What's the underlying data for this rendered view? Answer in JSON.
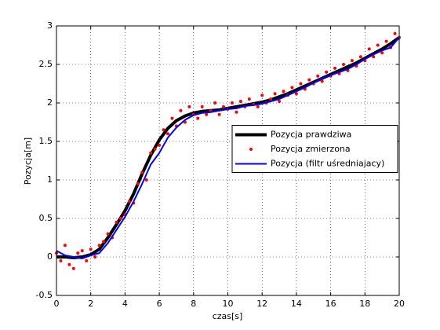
{
  "chart_data": {
    "type": "line",
    "xlabel": "czas[s]",
    "ylabel": "Pozycja[m]",
    "xlim": [
      0,
      20
    ],
    "xticks": [
      0,
      2,
      4,
      6,
      8,
      10,
      12,
      14,
      16,
      18,
      20
    ],
    "ylim": [
      -0.5,
      3
    ],
    "yticks": [
      -0.5,
      0,
      0.5,
      1,
      1.5,
      2,
      2.5,
      3
    ],
    "grid": true,
    "legend": "east",
    "series": [
      {
        "name": "Pozycja prawdziwa",
        "color": "#000000",
        "style": "line",
        "line_width": 4,
        "x": [
          0,
          0.5,
          1,
          1.5,
          2,
          2.5,
          3,
          3.5,
          4,
          4.5,
          5,
          5.5,
          6,
          6.5,
          7,
          7.5,
          8,
          8.5,
          9,
          9.5,
          10,
          10.5,
          11,
          11.5,
          12,
          12.5,
          13,
          13.5,
          14,
          14.5,
          15,
          15.5,
          16,
          16.5,
          17,
          17.5,
          18,
          18.5,
          19,
          19.5,
          20
        ],
        "values": [
          0,
          0,
          -0.01,
          0,
          0.03,
          0.1,
          0.25,
          0.42,
          0.6,
          0.82,
          1.08,
          1.32,
          1.52,
          1.67,
          1.77,
          1.83,
          1.87,
          1.89,
          1.9,
          1.91,
          1.93,
          1.95,
          1.97,
          1.99,
          2.01,
          2.04,
          2.08,
          2.12,
          2.17,
          2.22,
          2.27,
          2.32,
          2.37,
          2.42,
          2.47,
          2.52,
          2.58,
          2.64,
          2.7,
          2.77,
          2.85
        ]
      },
      {
        "name": "Pozycja zmierzona",
        "color": "#ff0000",
        "style": "marker",
        "x": [
          0,
          0.25,
          0.5,
          0.75,
          1,
          1.25,
          1.5,
          1.75,
          2,
          2.25,
          2.5,
          2.75,
          3,
          3.25,
          3.5,
          3.75,
          4,
          4.25,
          4.5,
          4.75,
          5,
          5.25,
          5.5,
          5.75,
          6,
          6.25,
          6.5,
          6.75,
          7,
          7.25,
          7.5,
          7.75,
          8,
          8.25,
          8.5,
          8.75,
          9,
          9.25,
          9.5,
          9.75,
          10,
          10.25,
          10.5,
          10.75,
          11,
          11.25,
          11.5,
          11.75,
          12,
          12.25,
          12.5,
          12.75,
          13,
          13.25,
          13.5,
          13.75,
          14,
          14.25,
          14.5,
          14.75,
          15,
          15.25,
          15.5,
          15.75,
          16,
          16.25,
          16.5,
          16.75,
          17,
          17.25,
          17.5,
          17.75,
          18,
          18.25,
          18.5,
          18.75,
          19,
          19.25,
          19.5,
          19.75,
          20
        ],
        "values": [
          0.05,
          -0.05,
          0.15,
          -0.1,
          -0.15,
          0.05,
          0.08,
          -0.05,
          0.1,
          0,
          0.15,
          0.2,
          0.3,
          0.25,
          0.45,
          0.5,
          0.55,
          0.72,
          0.7,
          0.95,
          1.1,
          1,
          1.35,
          1.4,
          1.45,
          1.65,
          1.6,
          1.8,
          1.7,
          1.9,
          1.75,
          1.95,
          1.85,
          1.8,
          1.95,
          1.85,
          1.9,
          2,
          1.85,
          1.95,
          1.92,
          2,
          1.88,
          2.02,
          1.95,
          2.05,
          1.98,
          1.95,
          2.1,
          2,
          2.05,
          2.12,
          2.02,
          2.15,
          2.1,
          2.2,
          2.12,
          2.25,
          2.18,
          2.3,
          2.25,
          2.35,
          2.28,
          2.4,
          2.35,
          2.45,
          2.38,
          2.5,
          2.42,
          2.55,
          2.48,
          2.6,
          2.55,
          2.7,
          2.6,
          2.75,
          2.65,
          2.8,
          2.72,
          2.9,
          2.85
        ]
      },
      {
        "name": "Pozycja (filtr uśredniajacy)",
        "color": "#0000ff",
        "style": "line",
        "line_width": 2,
        "x": [
          0,
          0.5,
          1,
          1.5,
          2,
          2.5,
          3,
          3.5,
          4,
          4.5,
          5,
          5.5,
          6,
          6.5,
          7,
          7.5,
          8,
          8.5,
          9,
          9.5,
          10,
          10.5,
          11,
          11.5,
          12,
          12.5,
          13,
          13.5,
          14,
          14.5,
          15,
          15.5,
          16,
          16.5,
          17,
          17.5,
          18,
          18.5,
          19,
          19.5,
          20
        ],
        "values": [
          0.08,
          0.02,
          0,
          -0.02,
          0.02,
          0.05,
          0.18,
          0.35,
          0.52,
          0.72,
          0.95,
          1.2,
          1.35,
          1.55,
          1.68,
          1.78,
          1.84,
          1.87,
          1.88,
          1.9,
          1.92,
          1.93,
          1.96,
          1.97,
          1.99,
          2.02,
          2.05,
          2.1,
          2.15,
          2.2,
          2.26,
          2.32,
          2.36,
          2.4,
          2.44,
          2.5,
          2.57,
          2.63,
          2.68,
          2.72,
          2.85
        ]
      }
    ]
  }
}
